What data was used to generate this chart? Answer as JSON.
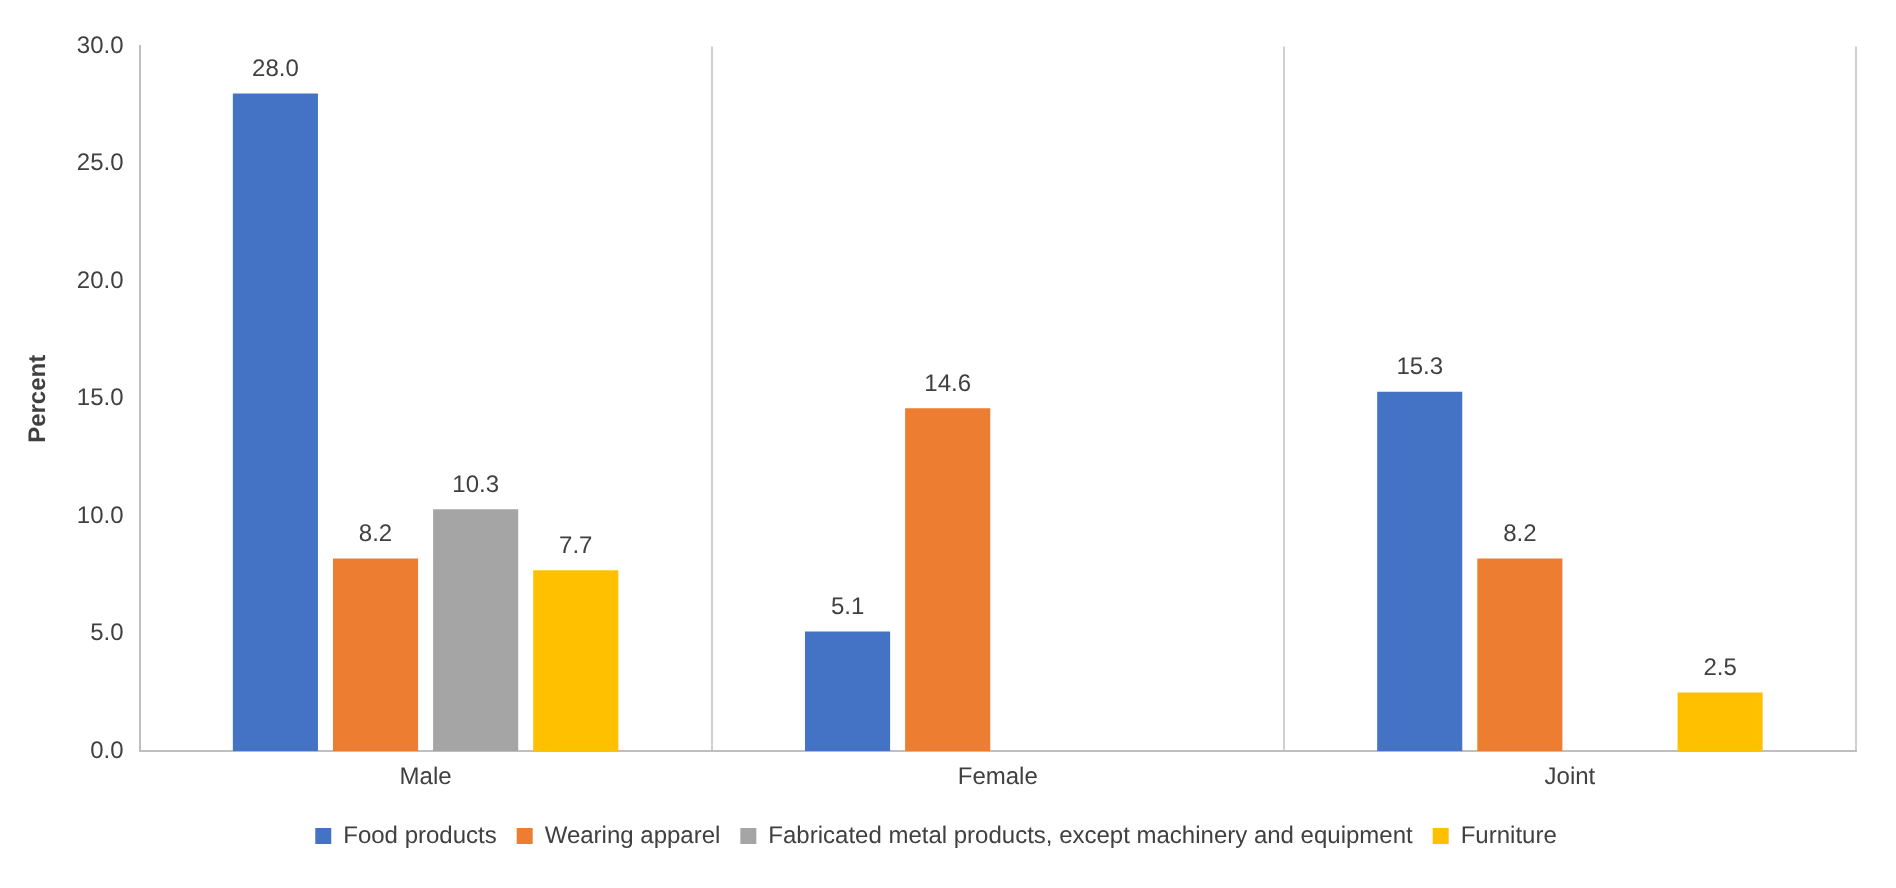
{
  "chart_data": {
    "type": "bar",
    "ylabel": "Percent",
    "categories": [
      "Male",
      "Female",
      "Joint"
    ],
    "series": [
      {
        "name": "Food products",
        "color": "#4472c4",
        "values": [
          28.0,
          5.1,
          15.3
        ],
        "value_labels": [
          "28.0",
          "5.1",
          "15.3"
        ]
      },
      {
        "name": "Wearing apparel",
        "color": "#ed7d31",
        "values": [
          8.2,
          14.6,
          8.2
        ],
        "value_labels": [
          "8.2",
          "14.6",
          "8.2"
        ]
      },
      {
        "name": "Fabricated metal products, except machinery and equipment",
        "color": "#a5a5a5",
        "values": [
          10.3,
          null,
          null
        ],
        "value_labels": [
          "10.3",
          null,
          null
        ]
      },
      {
        "name": "Furniture",
        "color": "#ffc000",
        "values": [
          7.7,
          null,
          2.5
        ],
        "value_labels": [
          "7.7",
          null,
          "2.5"
        ]
      }
    ],
    "ylim": [
      0,
      30
    ],
    "yticks": [
      {
        "value": 0,
        "label": "0.0"
      },
      {
        "value": 5,
        "label": "5.0"
      },
      {
        "value": 10,
        "label": "10.0"
      },
      {
        "value": 15,
        "label": "15.0"
      },
      {
        "value": 20,
        "label": "20.0"
      },
      {
        "value": 25,
        "label": "25.0"
      },
      {
        "value": 30,
        "label": "30.0"
      }
    ],
    "grid": "x",
    "legend": "bottom"
  }
}
